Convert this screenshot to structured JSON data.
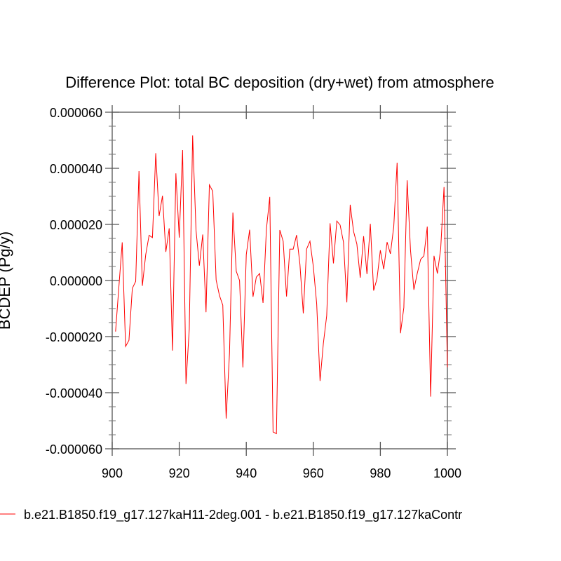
{
  "chart_data": {
    "type": "line",
    "title": "Difference Plot: total BC deposition (dry+wet) from atmosphere",
    "xlabel": "",
    "ylabel": "BCDEP  (Pg/y)",
    "xlim": [
      900,
      1000
    ],
    "ylim": [
      -6e-05,
      6e-05
    ],
    "y_scale_note_units": 1e-06,
    "x_ticks": [
      900,
      920,
      940,
      960,
      980,
      1000
    ],
    "x_tick_labels": [
      "900",
      "920",
      "940",
      "960",
      "980",
      "1000"
    ],
    "y_ticks": [
      6e-05,
      4e-05,
      2e-05,
      0,
      -2e-05,
      -4e-05,
      -6e-05
    ],
    "y_tick_labels": [
      "0.000060",
      "0.000040",
      "0.000020",
      "0.000000",
      "-0.000020",
      "-0.000040",
      "-0.000060"
    ],
    "grid": false,
    "legend_placement": "bottom",
    "series": [
      {
        "name": "b.e21.B1850.f19_g17.127kaH11-2deg.001 - b.e21.B1850.f19_g17.127kaContr",
        "color": "#ff0000",
        "x_start": 901,
        "values_e6": [
          -18.2,
          -2,
          13.6,
          -23.5,
          -21.3,
          -2.8,
          -0.3,
          39,
          -1.9,
          9.2,
          16.1,
          15.3,
          45.4,
          23,
          30.2,
          10.2,
          18.6,
          -25,
          38.2,
          15.3,
          46.5,
          -36.9,
          -17.3,
          51.7,
          18,
          5.3,
          16.4,
          -11.3,
          34.1,
          31.8,
          0.2,
          -5.4,
          -8.8,
          -49.2,
          -25.8,
          24.2,
          3.3,
          0,
          -31,
          9.2,
          18.1,
          -5.8,
          1.2,
          2.5,
          -8,
          18.3,
          29.8,
          -54,
          -54.6,
          18,
          14,
          -5.7,
          11.2,
          11.2,
          16.2,
          5.8,
          -11.7,
          11.2,
          14,
          5,
          -8.3,
          -35.8,
          -22.5,
          -12.5,
          20.4,
          6.1,
          21.2,
          19.8,
          13.7,
          -7.8,
          27,
          17.5,
          13,
          1,
          15.8,
          2.3,
          20.2,
          -3.6,
          0.6,
          10.8,
          4,
          13.7,
          9.5,
          19.2,
          42,
          -18.8,
          -9.6,
          35.7,
          10.8,
          -3.3,
          2.5,
          7.5,
          8.8,
          19.2,
          -41.4,
          8.8,
          2.5,
          11.2,
          33.3,
          -30.9
        ]
      }
    ]
  }
}
